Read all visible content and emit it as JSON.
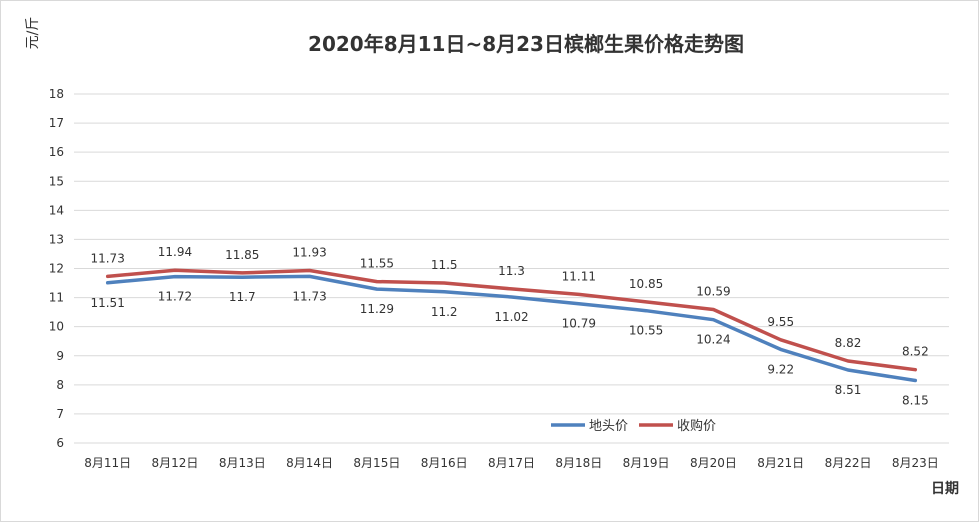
{
  "chart_data": {
    "type": "line",
    "title": "2020年8月11日~8月23日槟榔生果价格走势图",
    "ylabel": "元/斤",
    "xlabel": "日期",
    "ylim": [
      6,
      18
    ],
    "ytick_step": 1,
    "grid": true,
    "legend_position": "bottom-right",
    "categories": [
      "8月11日",
      "8月12日",
      "8月13日",
      "8月14日",
      "8月15日",
      "8月16日",
      "8月17日",
      "8月18日",
      "8月19日",
      "8月20日",
      "8月21日",
      "8月22日",
      "8月23日"
    ],
    "series": [
      {
        "name": "地头价",
        "color": "#4f81bd",
        "values": [
          11.51,
          11.72,
          11.7,
          11.73,
          11.29,
          11.2,
          11.02,
          10.79,
          10.55,
          10.24,
          9.22,
          8.51,
          8.15
        ],
        "label_position": "below"
      },
      {
        "name": "收购价",
        "color": "#c0504d",
        "values": [
          11.73,
          11.94,
          11.85,
          11.93,
          11.55,
          11.5,
          11.3,
          11.11,
          10.85,
          10.59,
          9.55,
          8.82,
          8.52
        ],
        "label_position": "above"
      }
    ]
  }
}
